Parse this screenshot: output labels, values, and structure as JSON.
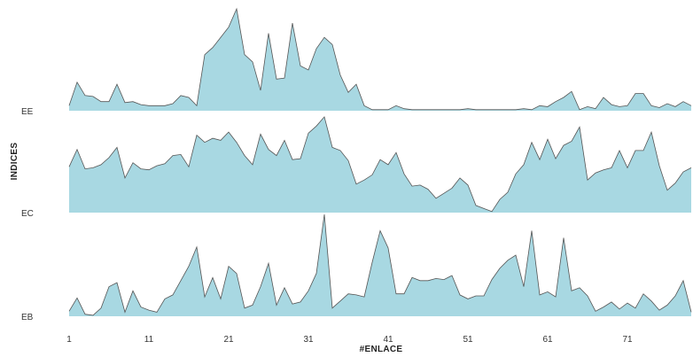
{
  "chart_data": {
    "type": "area",
    "subtype": "ridgeline",
    "title": "",
    "xlabel": "#ENLACE",
    "ylabel": "INDICES",
    "x_start": 1,
    "x_end": 79,
    "x_ticks": [
      1,
      11,
      21,
      31,
      41,
      51,
      61,
      71
    ],
    "ylim": [
      0,
      1
    ],
    "grid": false,
    "legend": "none",
    "fill_color": "#a8d8e2",
    "line_color": "#555555",
    "series": [
      {
        "name": "EE",
        "values": [
          0.05,
          0.28,
          0.15,
          0.14,
          0.09,
          0.09,
          0.26,
          0.08,
          0.09,
          0.06,
          0.05,
          0.05,
          0.05,
          0.07,
          0.15,
          0.13,
          0.05,
          0.55,
          0.62,
          0.72,
          0.82,
          1.0,
          0.55,
          0.48,
          0.2,
          0.76,
          0.31,
          0.32,
          0.86,
          0.44,
          0.4,
          0.61,
          0.72,
          0.65,
          0.35,
          0.18,
          0.26,
          0.05,
          0.01,
          0.01,
          0.01,
          0.05,
          0.02,
          0.01,
          0.01,
          0.01,
          0.01,
          0.01,
          0.01,
          0.01,
          0.02,
          0.01,
          0.01,
          0.01,
          0.01,
          0.01,
          0.01,
          0.02,
          0.01,
          0.05,
          0.04,
          0.09,
          0.13,
          0.19,
          0.01,
          0.04,
          0.02,
          0.13,
          0.06,
          0.04,
          0.05,
          0.17,
          0.17,
          0.05,
          0.03,
          0.07,
          0.04,
          0.09,
          0.05
        ]
      },
      {
        "name": "EC",
        "values": [
          0.45,
          0.62,
          0.43,
          0.44,
          0.47,
          0.54,
          0.64,
          0.34,
          0.49,
          0.43,
          0.42,
          0.46,
          0.48,
          0.56,
          0.57,
          0.45,
          0.76,
          0.69,
          0.73,
          0.71,
          0.79,
          0.69,
          0.56,
          0.47,
          0.77,
          0.62,
          0.56,
          0.71,
          0.52,
          0.53,
          0.78,
          0.85,
          0.94,
          0.64,
          0.61,
          0.51,
          0.28,
          0.32,
          0.37,
          0.52,
          0.47,
          0.59,
          0.38,
          0.26,
          0.27,
          0.23,
          0.14,
          0.19,
          0.24,
          0.34,
          0.27,
          0.07,
          0.04,
          0.01,
          0.13,
          0.2,
          0.38,
          0.47,
          0.69,
          0.52,
          0.72,
          0.53,
          0.66,
          0.7,
          0.84,
          0.32,
          0.39,
          0.42,
          0.44,
          0.61,
          0.44,
          0.61,
          0.61,
          0.79,
          0.46,
          0.22,
          0.29,
          0.4,
          0.44
        ]
      },
      {
        "name": "EB",
        "values": [
          0.05,
          0.18,
          0.02,
          0.01,
          0.08,
          0.29,
          0.33,
          0.04,
          0.25,
          0.09,
          0.06,
          0.04,
          0.17,
          0.21,
          0.35,
          0.49,
          0.68,
          0.19,
          0.38,
          0.17,
          0.49,
          0.42,
          0.08,
          0.11,
          0.29,
          0.52,
          0.11,
          0.28,
          0.12,
          0.14,
          0.25,
          0.42,
          1.0,
          0.08,
          0.15,
          0.22,
          0.21,
          0.19,
          0.53,
          0.84,
          0.67,
          0.22,
          0.22,
          0.38,
          0.35,
          0.35,
          0.37,
          0.36,
          0.4,
          0.21,
          0.17,
          0.2,
          0.2,
          0.36,
          0.47,
          0.55,
          0.6,
          0.29,
          0.84,
          0.21,
          0.24,
          0.19,
          0.77,
          0.25,
          0.28,
          0.2,
          0.05,
          0.09,
          0.14,
          0.07,
          0.13,
          0.08,
          0.22,
          0.15,
          0.06,
          0.11,
          0.2,
          0.35,
          0.04
        ]
      }
    ]
  }
}
